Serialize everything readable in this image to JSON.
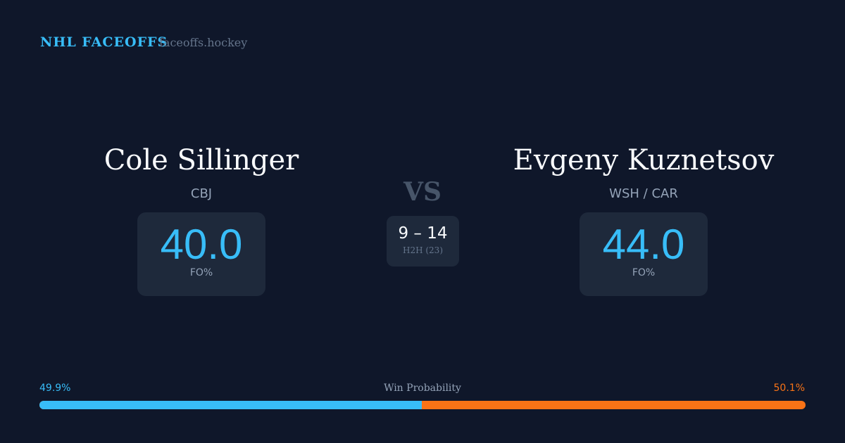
{
  "header": {
    "brand": "NHL FACEOFFS",
    "site": "faceoffs.hockey"
  },
  "left": {
    "name": "Cole Sillinger",
    "team": "CBJ",
    "fo_pct": "40.0",
    "fo_label": "FO%"
  },
  "right": {
    "name": "Evgeny Kuznetsov",
    "team": "WSH / CAR",
    "fo_pct": "44.0",
    "fo_label": "FO%"
  },
  "vs": "VS",
  "h2h": {
    "record": "9 – 14",
    "label": "H2H (23)"
  },
  "win_probability": {
    "label": "Win Probability",
    "left": "49.9%",
    "right": "50.1%",
    "left_value": 49.9,
    "colors": {
      "left": "#38bdf8",
      "right": "#f97316"
    }
  }
}
